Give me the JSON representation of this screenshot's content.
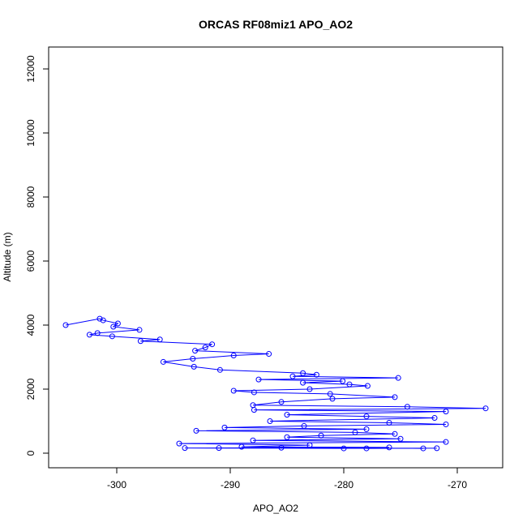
{
  "chart_data": {
    "type": "line",
    "title": "ORCAS RF08miz1 APO_AO2",
    "x_label": "APO_AO2",
    "y_label": "Altitude (m)",
    "color": "#0000ff",
    "markers": true,
    "x": [
      -304.5,
      -301.5,
      -301.2,
      -299.9,
      -300.3,
      -298,
      -301.7,
      -302.4,
      -300.4,
      -296.2,
      -297.9,
      -291.6,
      -292.2,
      -293.1,
      -286.6,
      -289.7,
      -293.3,
      -295.9,
      -293.2,
      -290.9,
      -283.6,
      -282.4,
      -284.5,
      -275.2,
      -287.5,
      -280.1,
      -283.6,
      -279.5,
      -277.9,
      -283,
      -289.7,
      -287.9,
      -281.2,
      -275.5,
      -281,
      -285.5,
      -288,
      -274.4,
      -267.5,
      -287.9,
      -271,
      -285,
      -278,
      -272,
      -286.5,
      -276,
      -271,
      -283.5,
      -290.5,
      -278,
      -293,
      -279,
      -275.5,
      -282,
      -285,
      -275,
      -288,
      -271,
      -294.5,
      -283,
      -289,
      -276,
      -294,
      -273,
      -285.5,
      -280,
      -291,
      -271.8,
      -278
    ],
    "values": [
      4000,
      4200,
      4150,
      4050,
      3950,
      3850,
      3750,
      3700,
      3650,
      3550,
      3500,
      3400,
      3300,
      3200,
      3100,
      3050,
      2950,
      2850,
      2700,
      2600,
      2500,
      2450,
      2400,
      2350,
      2300,
      2250,
      2200,
      2150,
      2100,
      2000,
      1950,
      1900,
      1850,
      1750,
      1700,
      1600,
      1500,
      1450,
      1400,
      1350,
      1300,
      1200,
      1150,
      1100,
      1000,
      950,
      900,
      850,
      800,
      750,
      700,
      650,
      600,
      550,
      500,
      450,
      400,
      350,
      300,
      250,
      200,
      180,
      160,
      150,
      170,
      150,
      160,
      155,
      150
    ],
    "xlim": [
      -306,
      -266
    ],
    "ylim": [
      -456,
      12684
    ],
    "xticks": [
      -300,
      -290,
      -280,
      -270
    ],
    "yticks": [
      0,
      2000,
      4000,
      6000,
      8000,
      10000,
      12000
    ]
  }
}
